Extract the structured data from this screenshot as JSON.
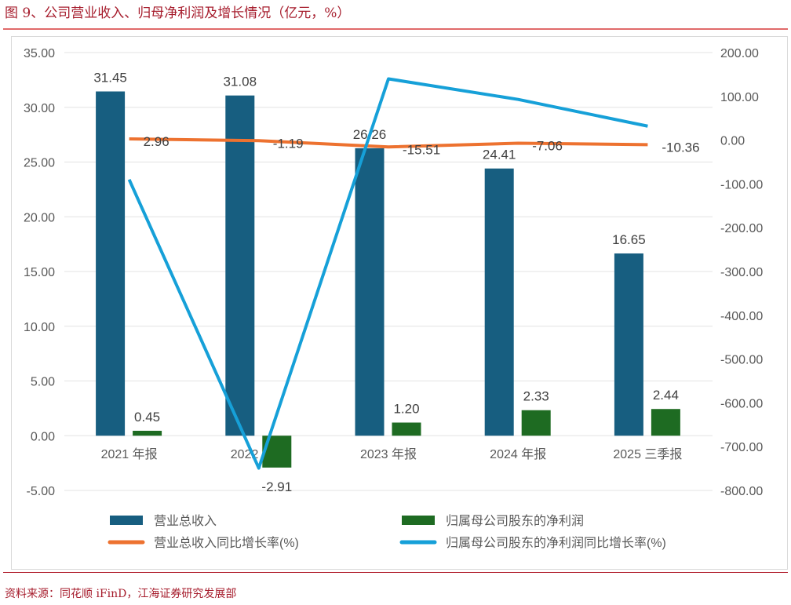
{
  "title": "图 9、公司营业收入、归母净利润及增长情况（亿元，%）",
  "source": "资料来源：同花顺 iFinD，江海证券研究发展部",
  "colors": {
    "revenue": "#175e80",
    "profit": "#1e6b22",
    "revenue_growth": "#ed7230",
    "profit_growth": "#16a0d8"
  },
  "chart_data": {
    "type": "bar+line",
    "categories": [
      "2021 年报",
      "2022 年报",
      "2023 年报",
      "2024 年报",
      "2025 三季报"
    ],
    "left_axis": {
      "ylim": [
        -5,
        35
      ],
      "ticks": [
        "35.00",
        "30.00",
        "25.00",
        "20.00",
        "15.00",
        "10.00",
        "5.00",
        "0.00",
        "-5.00"
      ]
    },
    "right_axis": {
      "ylim": [
        -800,
        200
      ],
      "ticks": [
        "200.00",
        "100.00",
        "0.00",
        "-100.00",
        "-200.00",
        "-300.00",
        "-400.00",
        "-500.00",
        "-600.00",
        "-700.00",
        "-800.00"
      ]
    },
    "series": [
      {
        "name": "营业总收入",
        "type": "bar",
        "axis": "left",
        "values": [
          31.45,
          31.08,
          26.26,
          24.41,
          16.65
        ],
        "labels": [
          "31.45",
          "31.08",
          "26.26",
          "24.41",
          "16.65"
        ]
      },
      {
        "name": "归属母公司股东的净利润",
        "type": "bar",
        "axis": "left",
        "values": [
          0.45,
          -2.91,
          1.2,
          2.33,
          2.44
        ],
        "labels": [
          "0.45",
          "-2.91",
          "1.20",
          "2.33",
          "2.44"
        ]
      },
      {
        "name": "营业总收入同比增长率(%)",
        "type": "line",
        "axis": "right",
        "values": [
          2.96,
          -1.19,
          -15.51,
          -7.06,
          -10.36
        ],
        "labels": [
          "2.96",
          "-1.19",
          "-15.51",
          "-7.06",
          "-10.36"
        ]
      },
      {
        "name": "归属母公司股东的净利润同比增长率(%)",
        "type": "line",
        "axis": "right",
        "values": [
          -90,
          -749,
          140,
          93,
          32
        ]
      }
    ]
  }
}
